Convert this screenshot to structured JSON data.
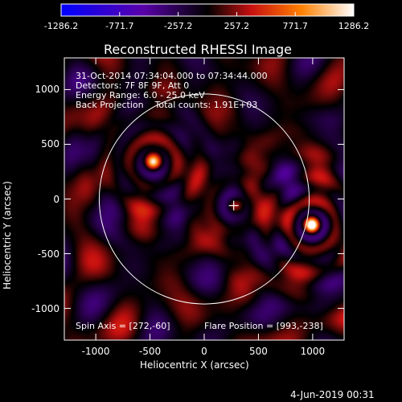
{
  "chart_data": {
    "type": "heatmap",
    "title": "Reconstructed RHESSI Image",
    "xlabel": "Heliocentric X (arcsec)",
    "ylabel": "Heliocentric Y (arcsec)",
    "xlim": [
      -1290,
      1290
    ],
    "ylim": [
      -1290,
      1290
    ],
    "xticks": [
      -1000,
      -500,
      0,
      500,
      1000
    ],
    "yticks": [
      -1000,
      -500,
      0,
      500,
      1000
    ],
    "colorbar": {
      "range": [
        -1286.2,
        1286.2
      ],
      "tick_labels": [
        "-1286.2",
        "-771.7",
        "-257.2",
        "257.2",
        "771.7",
        "1286.2"
      ]
    },
    "annotations": [
      "31-Oct-2014 07:34:04.000 to 07:34:44.000",
      "Detectors: 7F 8F 9F, Att 0",
      "Energy Range: 6.0 - 25.0 keV",
      "Back Projection    Total counts: 1.91E+03"
    ],
    "spin_axis": "Spin Axis = [272,-60]",
    "flare_position_label": "Flare Position = [993,-238]",
    "solar_limb_radius": 968,
    "markers": [
      {
        "name": "cross",
        "x": 272,
        "y": -60
      }
    ],
    "sources": [
      {
        "x": 993,
        "y": -238,
        "peak": 1286.2
      },
      {
        "x": -470,
        "y": 340,
        "peak": 900
      },
      {
        "x": 280,
        "y": -60,
        "peak": 400
      }
    ],
    "grid": false,
    "legend": "none"
  },
  "footer": {
    "date": "4-Jun-2019 00:31"
  }
}
